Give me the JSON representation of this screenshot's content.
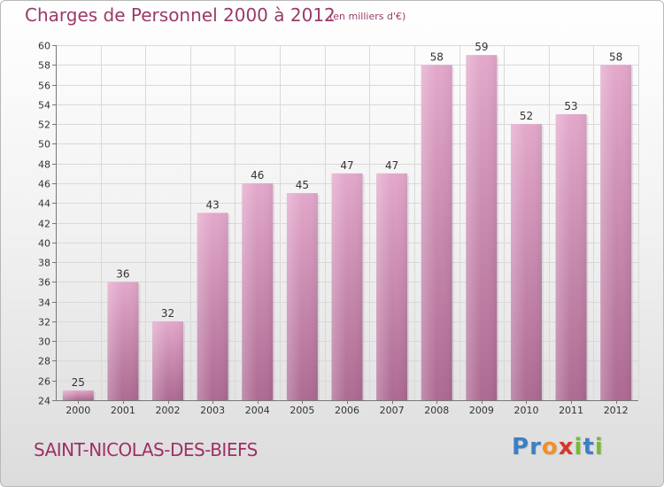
{
  "chart_data": {
    "type": "bar",
    "title": "Charges de Personnel 2000 à 2012",
    "subtitle": "(en milliers d'€)",
    "categories": [
      "2000",
      "2001",
      "2002",
      "2003",
      "2004",
      "2005",
      "2006",
      "2007",
      "2008",
      "2009",
      "2010",
      "2011",
      "2012"
    ],
    "values": [
      25,
      36,
      32,
      43,
      46,
      45,
      47,
      47,
      58,
      59,
      52,
      53,
      58
    ],
    "xlabel": "",
    "ylabel": "",
    "ylim": [
      24,
      60
    ],
    "yticks": [
      24,
      26,
      28,
      30,
      32,
      34,
      36,
      38,
      40,
      42,
      44,
      46,
      48,
      50,
      52,
      54,
      56,
      58,
      60
    ],
    "grid": true,
    "bar_color": "#c5769e"
  },
  "footer": {
    "commune": "SAINT-NICOLAS-DES-BIEFS",
    "logo_letters": [
      {
        "ch": "P",
        "color": "#3d7fc4"
      },
      {
        "ch": "r",
        "color": "#3d7fc4"
      },
      {
        "ch": "o",
        "color": "#f0902a"
      },
      {
        "ch": "x",
        "color": "#d6362e"
      },
      {
        "ch": "i",
        "color": "#79b83a"
      },
      {
        "ch": "t",
        "color": "#3d7fc4"
      },
      {
        "ch": "i",
        "color": "#79b83a"
      }
    ]
  }
}
